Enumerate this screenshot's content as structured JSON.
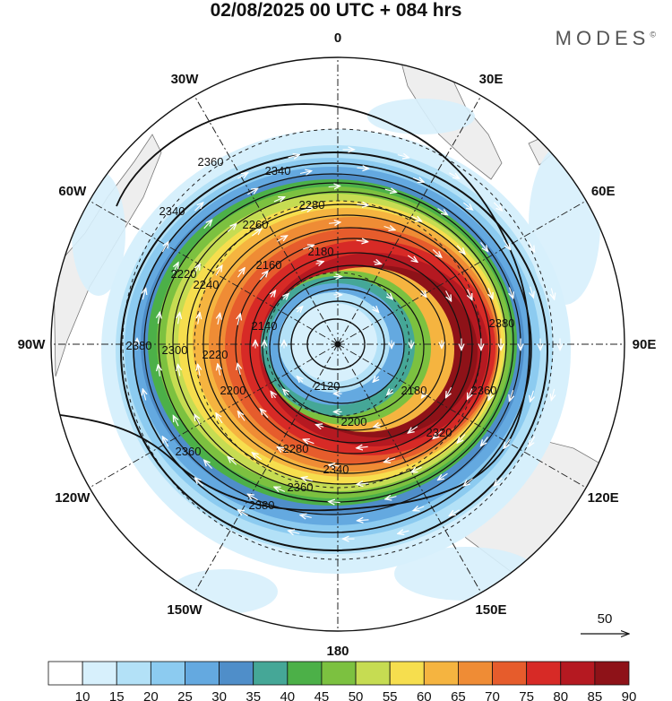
{
  "header": {
    "title": "02/08/2025  00 UTC  + 084 hrs",
    "brand": "MODES",
    "brand_mark": "©"
  },
  "chart_data": {
    "type": "polar-stereographic-map",
    "hemisphere": "southern",
    "variable_filled": "wind speed",
    "variable_contoured": "geopotential height",
    "longitude_labels": [
      {
        "lon": 0,
        "label": "0"
      },
      {
        "lon": 30,
        "label": "30E"
      },
      {
        "lon": 60,
        "label": "60E"
      },
      {
        "lon": 90,
        "label": "90E"
      },
      {
        "lon": 120,
        "label": "120E"
      },
      {
        "lon": 150,
        "label": "150E"
      },
      {
        "lon": 180,
        "label": "180"
      },
      {
        "lon": -150,
        "label": "150W"
      },
      {
        "lon": -120,
        "label": "120W"
      },
      {
        "lon": -90,
        "label": "90W"
      },
      {
        "lon": -60,
        "label": "60W"
      },
      {
        "lon": -30,
        "label": "30W"
      }
    ],
    "contour_labels": [
      "2360",
      "2340",
      "2340",
      "2260",
      "2280",
      "2180",
      "2220",
      "2240",
      "2160",
      "2140",
      "2300",
      "2220",
      "2200",
      "2120",
      "2180",
      "2200",
      "2280",
      "2320",
      "2340",
      "2360",
      "2380",
      "2360",
      "2380",
      "2360",
      "2380"
    ],
    "colorbar": {
      "levels": [
        10,
        15,
        20,
        25,
        30,
        35,
        40,
        45,
        50,
        55,
        60,
        65,
        70,
        75,
        80,
        85,
        90
      ],
      "colors": [
        "#ffffff",
        "#d7f0fc",
        "#b3e1f7",
        "#8ccbf0",
        "#64a9e0",
        "#4f8ec9",
        "#45a797",
        "#4cb048",
        "#7cc140",
        "#c6dc52",
        "#f6de4e",
        "#f5b440",
        "#ef8c35",
        "#e65c2c",
        "#d72a26",
        "#b51921",
        "#8e1218"
      ]
    },
    "vector_reference": {
      "label": "50"
    }
  }
}
